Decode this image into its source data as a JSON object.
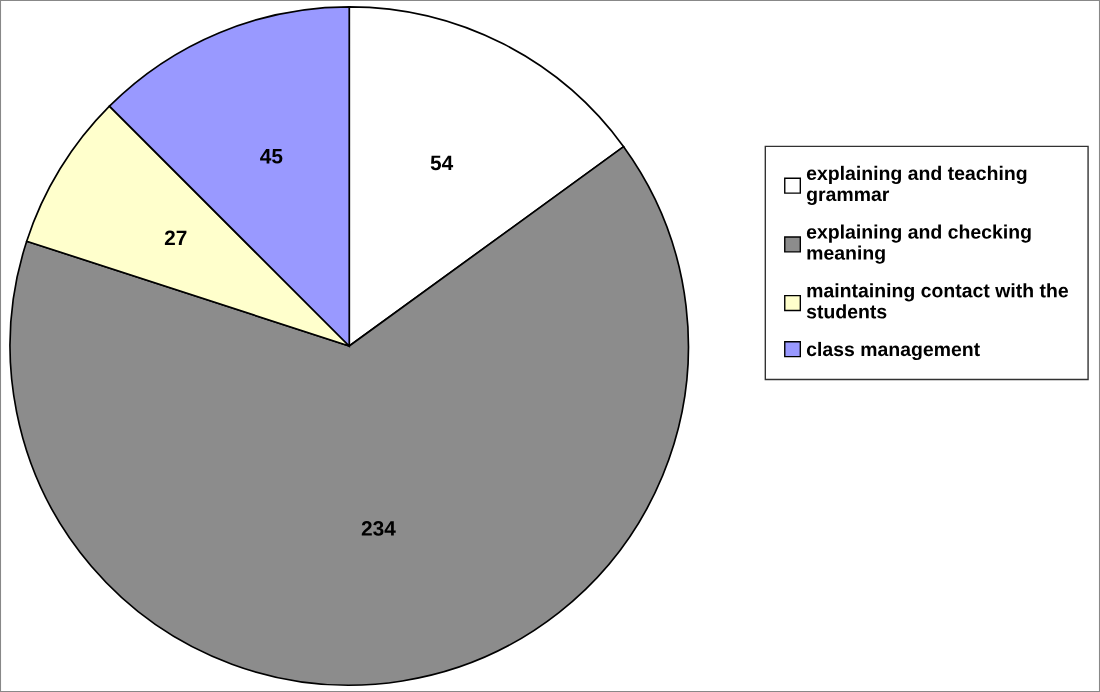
{
  "chart_data": {
    "type": "pie",
    "categories": [
      "explaining and teaching grammar",
      "explaining and checking meaning",
      "maintaining contact with the students",
      "class management"
    ],
    "values": [
      54,
      234,
      27,
      45
    ],
    "colors": [
      "#ffffff",
      "#8c8c8c",
      "#ffffcc",
      "#9999ff"
    ],
    "data_labels": true,
    "legend": "right"
  }
}
